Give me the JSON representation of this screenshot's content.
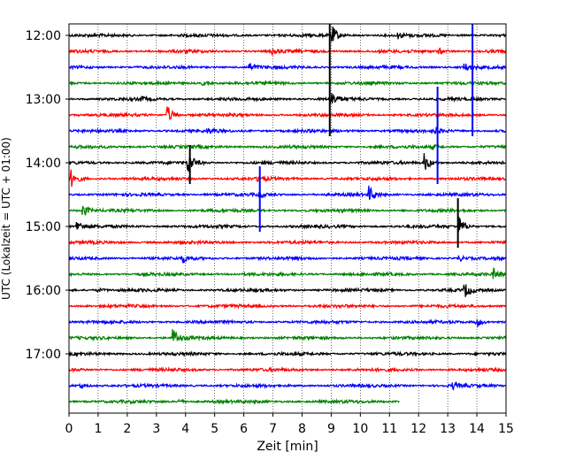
{
  "chart_data": {
    "type": "line",
    "xlabel": "Zeit  [min]",
    "ylabel": "UTC (Lokalzeit = UTC + 01:00)",
    "xlim": [
      0,
      15
    ],
    "x_ticks": [
      "0",
      "1",
      "2",
      "3",
      "4",
      "5",
      "6",
      "7",
      "8",
      "9",
      "10",
      "11",
      "12",
      "13",
      "14",
      "15"
    ],
    "y_ticks": [
      "12:00",
      "13:00",
      "14:00",
      "15:00",
      "16:00",
      "17:00"
    ],
    "grid": "vertical dotted",
    "colors": [
      "#000000",
      "#ff0000",
      "#0000ff",
      "#008000"
    ],
    "traces": [
      {
        "start": "12:00",
        "color": "#000000",
        "events": [
          [
            9.0,
            12
          ],
          [
            11.3,
            3
          ]
        ]
      },
      {
        "start": "12:15",
        "color": "#ff0000",
        "events": [
          [
            7.0,
            3
          ],
          [
            12.7,
            3
          ]
        ]
      },
      {
        "start": "12:30",
        "color": "#0000ff",
        "events": [
          [
            6.2,
            4
          ],
          [
            13.6,
            4
          ]
        ]
      },
      {
        "start": "12:45",
        "color": "#008000",
        "events": [
          [
            4.6,
            2
          ]
        ]
      },
      {
        "start": "13:00",
        "color": "#000000",
        "events": [
          [
            9.0,
            8
          ],
          [
            2.5,
            2
          ]
        ]
      },
      {
        "start": "13:15",
        "color": "#ff0000",
        "events": [
          [
            3.4,
            9
          ]
        ]
      },
      {
        "start": "13:30",
        "color": "#0000ff",
        "events": [
          [
            4.8,
            2
          ],
          [
            12.6,
            3
          ]
        ]
      },
      {
        "start": "13:45",
        "color": "#008000",
        "events": [
          [
            12.5,
            2
          ]
        ]
      },
      {
        "start": "14:00",
        "color": "#000000",
        "events": [
          [
            4.1,
            11
          ],
          [
            12.2,
            10
          ]
        ]
      },
      {
        "start": "14:15",
        "color": "#ff0000",
        "events": [
          [
            0.1,
            9
          ],
          [
            6.5,
            3
          ]
        ]
      },
      {
        "start": "14:30",
        "color": "#0000ff",
        "events": [
          [
            10.3,
            9
          ],
          [
            6.5,
            3
          ]
        ]
      },
      {
        "start": "14:45",
        "color": "#008000",
        "events": [
          [
            0.5,
            6
          ]
        ]
      },
      {
        "start": "15:00",
        "color": "#000000",
        "events": [
          [
            0.3,
            6
          ],
          [
            13.4,
            10
          ]
        ]
      },
      {
        "start": "15:15",
        "color": "#ff0000",
        "events": []
      },
      {
        "start": "15:30",
        "color": "#0000ff",
        "events": [
          [
            3.9,
            4
          ],
          [
            13.4,
            3
          ]
        ]
      },
      {
        "start": "15:45",
        "color": "#008000",
        "events": [
          [
            14.6,
            5
          ]
        ]
      },
      {
        "start": "16:00",
        "color": "#000000",
        "events": [
          [
            13.6,
            7
          ],
          [
            1.0,
            2
          ]
        ]
      },
      {
        "start": "16:15",
        "color": "#ff0000",
        "events": []
      },
      {
        "start": "16:30",
        "color": "#0000ff",
        "events": [
          [
            14.0,
            5
          ]
        ]
      },
      {
        "start": "16:45",
        "color": "#008000",
        "events": [
          [
            3.6,
            9
          ]
        ]
      },
      {
        "start": "17:00",
        "color": "#000000",
        "events": []
      },
      {
        "start": "17:15",
        "color": "#ff0000",
        "events": []
      },
      {
        "start": "17:30",
        "color": "#0000ff",
        "events": [
          [
            0.4,
            3
          ],
          [
            13.2,
            3
          ]
        ]
      },
      {
        "start": "17:45",
        "color": "#008000",
        "end": 11.35,
        "events": [
          [
            3.8,
            2
          ]
        ]
      }
    ],
    "spikes": [
      {
        "x": 8.95,
        "from": "12:00",
        "to": "13:30",
        "color": "#000000"
      },
      {
        "x": 13.85,
        "from": "12:00",
        "to": "13:30",
        "color": "#0000ff"
      },
      {
        "x": 12.65,
        "from": "13:00",
        "to": "14:15",
        "color": "#0000ff"
      },
      {
        "x": 4.15,
        "from": "13:55",
        "to": "14:15",
        "color": "#000000"
      },
      {
        "x": 6.55,
        "from": "14:15",
        "to": "15:00",
        "color": "#0000ff"
      },
      {
        "x": 13.35,
        "from": "14:45",
        "to": "15:15",
        "color": "#000000"
      }
    ]
  }
}
